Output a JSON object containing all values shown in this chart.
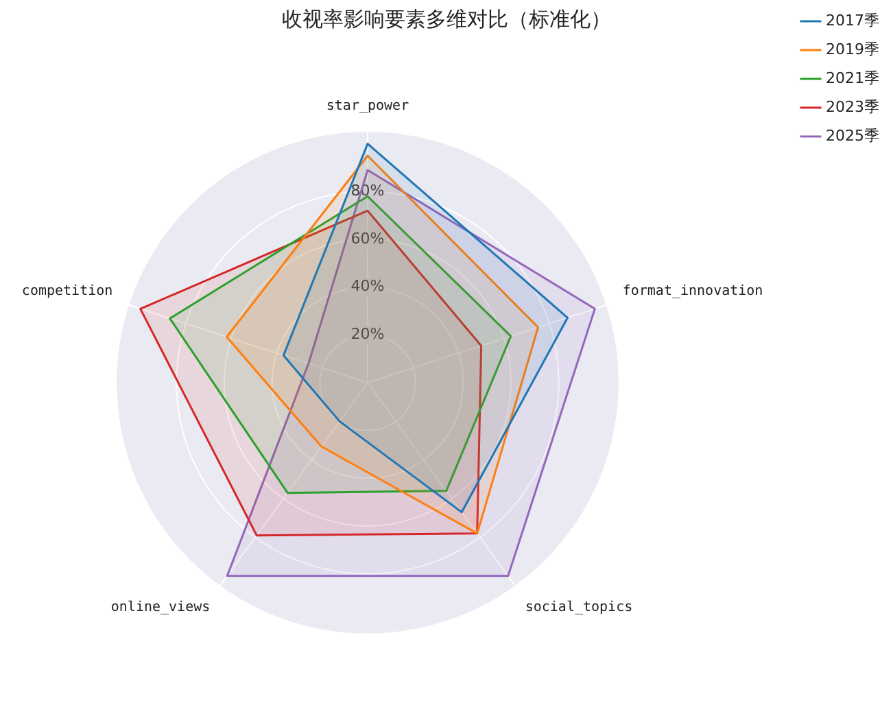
{
  "chart_data": {
    "type": "radar",
    "title": "收视率影响要素多维对比（标准化）",
    "categories": [
      "star_power",
      "format_innovation",
      "social_topics",
      "online_views",
      "competition"
    ],
    "series": [
      {
        "name": "2017季",
        "color": "#1f77b4",
        "values": [
          1.0,
          0.88,
          0.67,
          0.2,
          0.37
        ]
      },
      {
        "name": "2019季",
        "color": "#ff7f0e",
        "values": [
          0.95,
          0.75,
          0.78,
          0.33,
          0.62
        ]
      },
      {
        "name": "2021季",
        "color": "#2ca02c",
        "values": [
          0.78,
          0.63,
          0.56,
          0.57,
          0.87
        ]
      },
      {
        "name": "2023季",
        "color": "#d62728",
        "values": [
          0.72,
          0.5,
          0.78,
          0.79,
          1.0
        ]
      },
      {
        "name": "2025季",
        "color": "#9467bd",
        "values": [
          0.89,
          1.0,
          1.0,
          1.0,
          0.26
        ]
      }
    ],
    "ylim": [
      0,
      1.05
    ],
    "yticks": [
      {
        "value": 0.2,
        "label": "20%"
      },
      {
        "value": 0.4,
        "label": "40%"
      },
      {
        "value": 0.6,
        "label": "60%"
      },
      {
        "value": 0.8,
        "label": "80%"
      }
    ],
    "grid": true,
    "legend": "top right",
    "marker": "none"
  }
}
